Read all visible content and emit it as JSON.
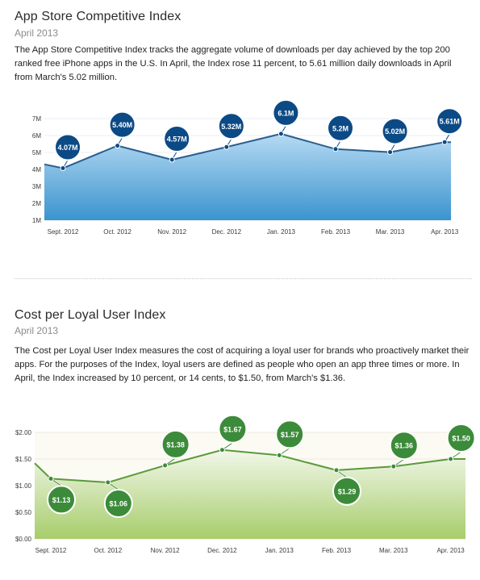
{
  "sections": [
    {
      "title": "App Store Competitive Index",
      "subtitle": "April 2013",
      "description": "The App Store Competitive Index tracks the aggregate volume of downloads per day achieved by the top 200 ranked free iPhone apps in the U.S. In April, the Index rose 11 percent, to 5.61 million daily downloads in April from March's 5.02 million."
    },
    {
      "title": "Cost per Loyal User Index",
      "subtitle": "April 2013",
      "description": "The Cost per Loyal User Index measures the cost of acquiring a loyal user for brands who proactively market their apps. For the purposes of the Index, loyal users are defined as people who open an app three times or more. In April, the Index increased by 10 percent, or 14 cents, to $1.50, from March's $1.36."
    }
  ],
  "chart_data": [
    {
      "type": "area",
      "title": "App Store Competitive Index",
      "categories": [
        "Sept. 2012",
        "Oct. 2012",
        "Nov. 2012",
        "Dec. 2012",
        "Jan. 2013",
        "Feb. 2013",
        "Mar. 2013",
        "Apr. 2013"
      ],
      "values": [
        4.07,
        5.4,
        4.57,
        5.32,
        6.1,
        5.2,
        5.02,
        5.61
      ],
      "data_labels": [
        "4.07M",
        "5.40M",
        "4.57M",
        "5.32M",
        "6.1M",
        "5.2M",
        "5.02M",
        "5.61M"
      ],
      "yticks": [
        "1M",
        "2M",
        "3M",
        "4M",
        "5M",
        "6M",
        "7M"
      ],
      "ylim": [
        1,
        7
      ],
      "first_value": 4.3,
      "colors": {
        "line": "#2a5f8f",
        "fill_top": "#b6daf2",
        "fill_bottom": "#3b94cf",
        "bubble": "#0c4a86"
      },
      "grid": true
    },
    {
      "type": "area",
      "title": "Cost per Loyal User Index",
      "categories": [
        "Sept. 2012",
        "Oct. 2012",
        "Nov. 2012",
        "Dec. 2012",
        "Jan. 2013",
        "Feb. 2013",
        "Mar. 2013",
        "Apr. 2013"
      ],
      "values": [
        1.13,
        1.06,
        1.38,
        1.67,
        1.57,
        1.29,
        1.36,
        1.5
      ],
      "data_labels": [
        "$1.13",
        "$1.06",
        "$1.38",
        "$1.67",
        "$1.57",
        "$1.29",
        "$1.36",
        "$1.50"
      ],
      "yticks": [
        "$0.00",
        "$0.50",
        "$1.00",
        "$1.50",
        "$2.00"
      ],
      "ylim": [
        0,
        2
      ],
      "first_value": 1.42,
      "colors": {
        "line": "#5a9a3a",
        "fill_top": "#f2f7ea",
        "fill_bottom": "#a7cd6b",
        "bubble": "#3c8b3a"
      },
      "grid": true
    }
  ]
}
